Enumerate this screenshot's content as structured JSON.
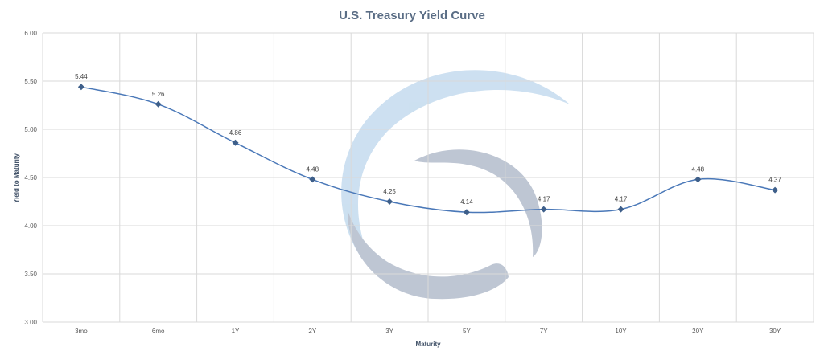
{
  "chart_data": {
    "type": "line",
    "title": "U.S. Treasury Yield Curve",
    "xlabel": "Maturity",
    "ylabel": "Yield to Maturity",
    "categories": [
      "3mo",
      "6mo",
      "1Y",
      "2Y",
      "3Y",
      "5Y",
      "7Y",
      "10Y",
      "20Y",
      "30Y"
    ],
    "series": [
      {
        "values": [
          5.44,
          5.26,
          4.86,
          4.48,
          4.25,
          4.14,
          4.17,
          4.17,
          4.48,
          4.37
        ],
        "data_labels": [
          "5.44",
          "5.26",
          "4.86",
          "4.48",
          "4.25",
          "4.14",
          "4.17",
          "4.17",
          "4.48",
          "4.37"
        ],
        "color": "#4a78b8",
        "marker_color": "#3e5f8a",
        "marker": "diamond",
        "smooth": true
      }
    ],
    "yticks": [
      "3.00",
      "3.50",
      "4.00",
      "4.50",
      "5.00",
      "5.50",
      "6.00"
    ],
    "ylim": [
      3.0,
      6.0
    ],
    "grid": true,
    "legend": "none",
    "watermark": "logo-swirl",
    "colors": {
      "title": "#5a6d85",
      "grid": "#d9d9d9",
      "watermark_light": "#bcd6ec",
      "watermark_dark": "#a9b3c5"
    }
  }
}
